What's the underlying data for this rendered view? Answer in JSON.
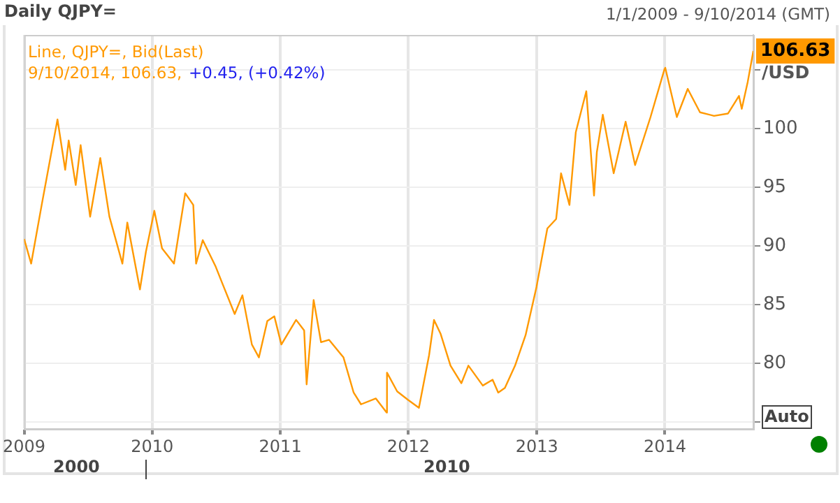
{
  "chart_data": {
    "type": "line",
    "title": "Daily QJPY=",
    "subtitle": "1/1/2009 - 9/10/2014 (GMT)",
    "ylabel": "/USD",
    "annotations": [
      "Line, QJPY=, Bid(Last)",
      "9/10/2014, 106.63,",
      "+0.45, (+0.42%)",
      "2000",
      "2010",
      "Auto",
      {
        "text": "106.63",
        "x": "2014-09-10",
        "y": 106.63
      }
    ],
    "x": [
      "2009-01-01",
      "2009-01-21",
      "2009-02-20",
      "2009-04-06",
      "2009-04-28",
      "2009-05-08",
      "2009-05-28",
      "2009-06-11",
      "2009-07-08",
      "2009-08-06",
      "2009-09-01",
      "2009-10-08",
      "2009-10-22",
      "2009-11-27",
      "2009-12-14",
      "2010-01-07",
      "2010-01-29",
      "2010-03-04",
      "2010-04-05",
      "2010-04-28",
      "2010-05-06",
      "2010-05-25",
      "2010-06-30",
      "2010-07-20",
      "2010-08-24",
      "2010-09-15",
      "2010-10-12",
      "2010-11-01",
      "2010-11-25",
      "2010-12-15",
      "2011-01-04",
      "2011-02-15",
      "2011-03-10",
      "2011-03-17",
      "2011-04-06",
      "2011-04-27",
      "2011-05-20",
      "2011-06-30",
      "2011-07-29",
      "2011-08-19",
      "2011-09-30",
      "2011-10-31",
      "2011-11-01",
      "2011-11-30",
      "2011-12-30",
      "2012-01-31",
      "2012-02-29",
      "2012-03-14",
      "2012-04-02",
      "2012-04-30",
      "2012-05-31",
      "2012-06-20",
      "2012-07-31",
      "2012-08-28",
      "2012-09-13",
      "2012-10-02",
      "2012-10-31",
      "2012-11-30",
      "2012-12-31",
      "2013-01-31",
      "2013-02-25",
      "2013-03-11",
      "2013-04-04",
      "2013-04-22",
      "2013-05-22",
      "2013-06-13",
      "2013-06-21",
      "2013-07-08",
      "2013-08-08",
      "2013-09-11",
      "2013-10-08",
      "2013-11-21",
      "2013-12-31",
      "2014-01-02",
      "2014-02-04",
      "2014-03-07",
      "2014-04-11",
      "2014-05-21",
      "2014-06-30",
      "2014-07-31",
      "2014-08-08",
      "2014-08-25",
      "2014-09-10"
    ],
    "values": [
      90.6,
      88.5,
      93.5,
      100.8,
      96.5,
      99.0,
      95.2,
      98.6,
      92.5,
      97.5,
      92.5,
      88.5,
      92.0,
      86.3,
      89.5,
      93.0,
      89.8,
      88.5,
      94.5,
      93.5,
      88.5,
      90.5,
      88.3,
      86.8,
      84.2,
      85.8,
      81.6,
      80.5,
      83.6,
      84.0,
      81.6,
      83.7,
      82.8,
      78.2,
      85.4,
      81.8,
      82.0,
      80.5,
      77.5,
      76.5,
      77.0,
      75.8,
      79.2,
      77.6,
      76.9,
      76.2,
      80.7,
      83.7,
      82.5,
      79.8,
      78.3,
      79.8,
      78.1,
      78.6,
      77.5,
      77.9,
      79.8,
      82.4,
      86.5,
      91.5,
      92.3,
      96.2,
      93.5,
      99.7,
      103.2,
      94.3,
      98.0,
      101.2,
      96.2,
      100.6,
      96.9,
      101.0,
      105.1,
      105.2,
      101.0,
      103.4,
      101.4,
      101.1,
      101.3,
      102.8,
      101.7,
      104.0,
      106.63
    ],
    "color": "#ff9900",
    "xlim": [
      "2009-01-01",
      "2014-09-10"
    ],
    "xticks": [
      {
        "value": "2009-01-01",
        "label": "2009"
      },
      {
        "value": "2010-01-01",
        "label": "2010"
      },
      {
        "value": "2011-01-01",
        "label": "2011"
      },
      {
        "value": "2012-01-01",
        "label": "2012"
      },
      {
        "value": "2013-01-01",
        "label": "2013"
      },
      {
        "value": "2014-01-01",
        "label": "2014"
      }
    ],
    "ylim": [
      74.4,
      108
    ],
    "yticks": [
      {
        "value": 75,
        "label": null
      },
      80,
      85,
      90,
      95,
      100,
      {
        "value": 105,
        "label": null
      }
    ],
    "grid": true,
    "legend": false,
    "marker": "none",
    "line_style": "solid"
  }
}
